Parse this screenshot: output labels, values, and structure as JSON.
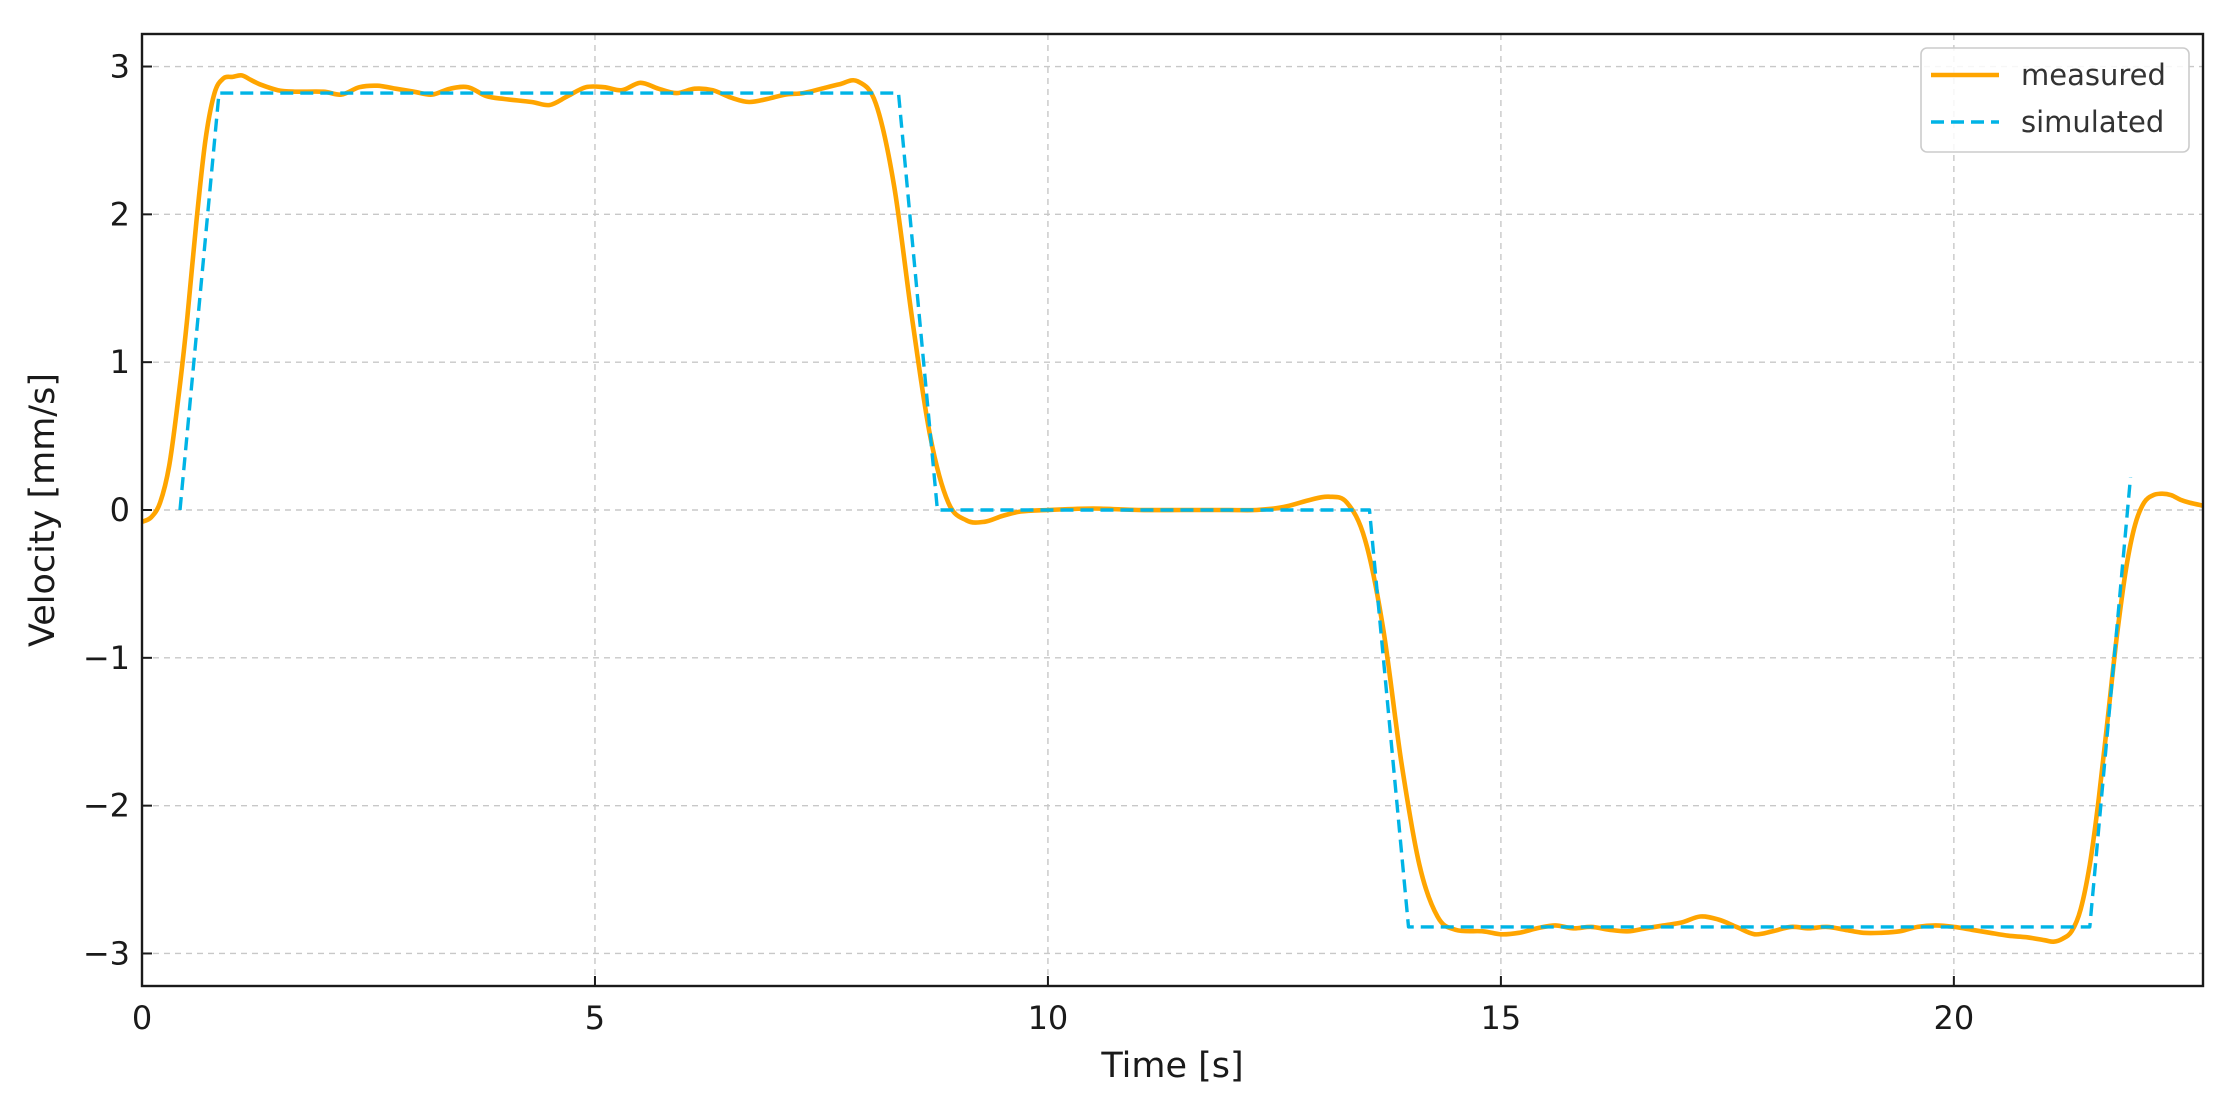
{
  "chart_data": {
    "type": "line",
    "xlabel": "Time [s]",
    "ylabel": "Velocity [mm/s]",
    "xlim": [
      0,
      22.75
    ],
    "ylim": [
      -3.22,
      3.22
    ],
    "xticks": [
      0,
      5,
      10,
      15,
      20
    ],
    "yticks": [
      -3,
      -2,
      -1,
      0,
      1,
      2,
      3
    ],
    "xtick_labels": [
      "0",
      "5",
      "10",
      "15",
      "20"
    ],
    "ytick_labels": [
      "−3",
      "−2",
      "−1",
      "0",
      "1",
      "2",
      "3"
    ],
    "grid": true,
    "legend_position": "top-right",
    "series": [
      {
        "name": "measured",
        "color": "#FFA500",
        "style": "solid",
        "x": [
          0.0,
          0.1,
          0.2,
          0.3,
          0.4,
          0.5,
          0.6,
          0.7,
          0.8,
          0.9,
          1.0,
          1.1,
          1.2,
          1.3,
          1.5,
          1.7,
          2.0,
          2.2,
          2.4,
          2.6,
          2.8,
          3.0,
          3.2,
          3.4,
          3.6,
          3.8,
          4.0,
          4.3,
          4.5,
          4.7,
          4.9,
          5.1,
          5.3,
          5.5,
          5.7,
          5.9,
          6.1,
          6.3,
          6.5,
          6.7,
          6.9,
          7.1,
          7.3,
          7.5,
          7.7,
          7.9,
          8.1,
          8.3,
          8.5,
          8.7,
          8.9,
          9.1,
          9.3,
          9.5,
          9.7,
          10.0,
          10.5,
          11.0,
          11.5,
          12.0,
          12.3,
          12.6,
          12.9,
          13.1,
          13.3,
          13.5,
          13.7,
          13.9,
          14.1,
          14.3,
          14.5,
          14.8,
          15.0,
          15.2,
          15.4,
          15.6,
          15.8,
          16.0,
          16.2,
          16.4,
          16.6,
          16.8,
          17.0,
          17.2,
          17.4,
          17.6,
          17.8,
          18.0,
          18.2,
          18.4,
          18.6,
          18.8,
          19.0,
          19.2,
          19.4,
          19.6,
          19.8,
          20.0,
          20.2,
          20.4,
          20.6,
          20.8,
          21.0,
          21.1,
          21.2,
          21.3,
          21.4,
          21.5,
          21.6,
          21.7,
          21.8,
          21.9,
          22.0,
          22.1,
          22.2,
          22.3,
          22.4,
          22.5,
          22.6,
          22.75
        ],
        "y": [
          -0.08,
          -0.05,
          0.05,
          0.3,
          0.75,
          1.3,
          1.95,
          2.5,
          2.82,
          2.92,
          2.93,
          2.94,
          2.91,
          2.88,
          2.84,
          2.83,
          2.83,
          2.81,
          2.86,
          2.87,
          2.85,
          2.83,
          2.81,
          2.85,
          2.86,
          2.8,
          2.78,
          2.76,
          2.74,
          2.8,
          2.86,
          2.86,
          2.84,
          2.89,
          2.85,
          2.82,
          2.85,
          2.84,
          2.79,
          2.76,
          2.78,
          2.81,
          2.82,
          2.85,
          2.88,
          2.9,
          2.75,
          2.2,
          1.3,
          0.5,
          0.05,
          -0.07,
          -0.08,
          -0.04,
          -0.01,
          0.0,
          0.01,
          0.0,
          0.0,
          0.0,
          0.0,
          0.02,
          0.07,
          0.09,
          0.05,
          -0.2,
          -0.8,
          -1.7,
          -2.4,
          -2.75,
          -2.84,
          -2.85,
          -2.87,
          -2.86,
          -2.83,
          -2.81,
          -2.83,
          -2.82,
          -2.84,
          -2.85,
          -2.83,
          -2.81,
          -2.79,
          -2.75,
          -2.77,
          -2.82,
          -2.87,
          -2.85,
          -2.82,
          -2.83,
          -2.82,
          -2.84,
          -2.86,
          -2.86,
          -2.85,
          -2.82,
          -2.81,
          -2.82,
          -2.84,
          -2.86,
          -2.88,
          -2.89,
          -2.91,
          -2.92,
          -2.9,
          -2.85,
          -2.7,
          -2.4,
          -1.95,
          -1.4,
          -0.85,
          -0.4,
          -0.1,
          0.05,
          0.1,
          0.11,
          0.1,
          0.07,
          0.05,
          0.03
        ]
      },
      {
        "name": "simulated",
        "color": "#00B4E6",
        "style": "dashed",
        "x": [
          0.42,
          0.85,
          8.35,
          8.78,
          13.55,
          13.98,
          21.5,
          21.95
        ],
        "y": [
          0.0,
          2.82,
          2.82,
          0.0,
          0.0,
          -2.82,
          -2.82,
          0.22
        ]
      }
    ]
  }
}
